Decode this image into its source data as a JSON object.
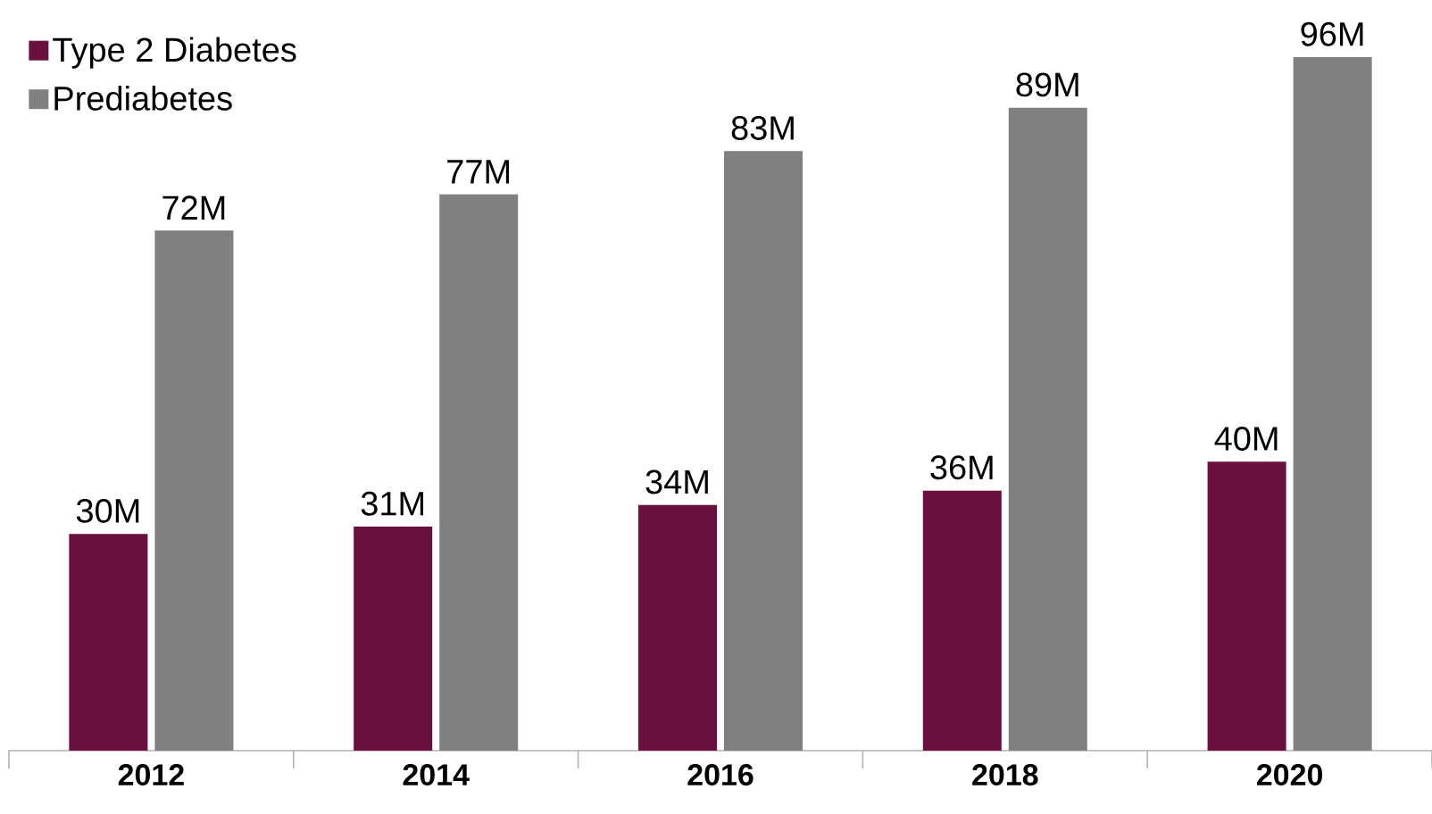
{
  "chart_data": {
    "type": "bar",
    "categories": [
      "2012",
      "2014",
      "2016",
      "2018",
      "2020"
    ],
    "series": [
      {
        "name": "Type 2 Diabetes",
        "color": "#6a0f3e",
        "values": [
          30,
          31,
          34,
          36,
          40
        ],
        "value_labels": [
          "30M",
          "31M",
          "34M",
          "36M",
          "40M"
        ]
      },
      {
        "name": "Prediabetes",
        "color": "#808080",
        "values": [
          72,
          77,
          83,
          89,
          96
        ],
        "value_labels": [
          "72M",
          "77M",
          "83M",
          "89M",
          "96M"
        ]
      }
    ],
    "legend": "top left"
  }
}
